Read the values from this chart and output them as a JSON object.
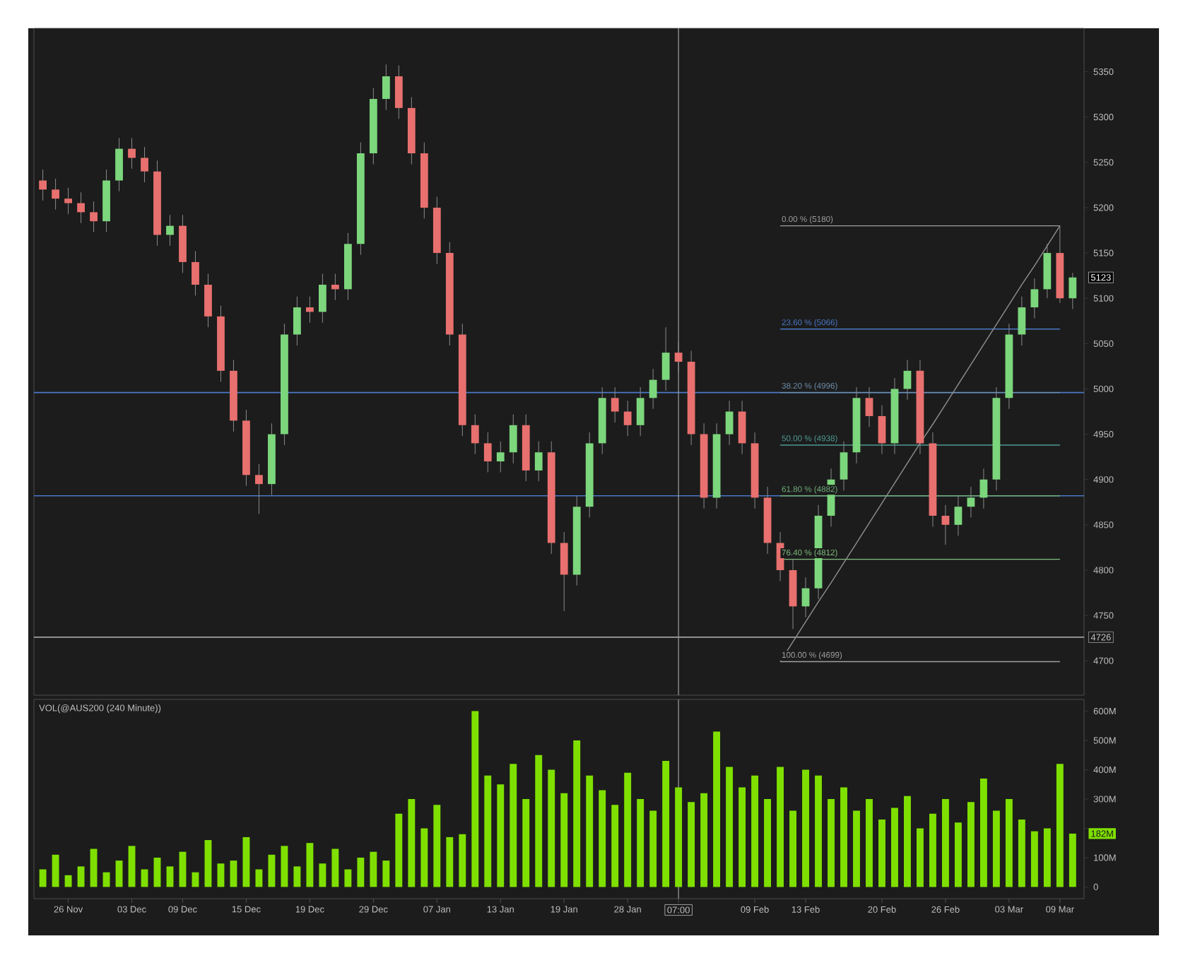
{
  "chart_data": [
    {
      "type": "candlestick",
      "tick_labels": "y",
      "categories": [
        null,
        null,
        "26 Nov",
        null,
        null,
        null,
        null,
        "03 Dec",
        null,
        null,
        null,
        "09 Dec",
        null,
        null,
        null,
        null,
        "15 Dec",
        null,
        null,
        null,
        null,
        "19 Dec",
        null,
        null,
        null,
        null,
        "29 Dec",
        null,
        null,
        null,
        null,
        "07 Jan",
        null,
        null,
        null,
        null,
        "13 Jan",
        null,
        null,
        null,
        null,
        "19 Jan",
        null,
        null,
        null,
        null,
        "28 Jan",
        null,
        null,
        null,
        "07:00",
        null,
        null,
        null,
        null,
        null,
        "09 Feb",
        null,
        null,
        null,
        "13 Feb",
        null,
        null,
        null,
        null,
        null,
        "20 Feb",
        null,
        null,
        null,
        null,
        "26 Feb",
        null,
        null,
        null,
        null,
        "03 Mar",
        null,
        null,
        null,
        "09 Mar",
        null
      ],
      "ohlc": [
        [
          5230,
          5242,
          5208,
          5220
        ],
        [
          5220,
          5232,
          5198,
          5210
        ],
        [
          5210,
          5222,
          5193,
          5205
        ],
        [
          5205,
          5217,
          5183,
          5195
        ],
        [
          5195,
          5207,
          5173,
          5185
        ],
        [
          5185,
          5242,
          5173,
          5230
        ],
        [
          5230,
          5277,
          5218,
          5265
        ],
        [
          5265,
          5277,
          5243,
          5255
        ],
        [
          5255,
          5267,
          5228,
          5240
        ],
        [
          5240,
          5252,
          5158,
          5170
        ],
        [
          5170,
          5192,
          5158,
          5180
        ],
        [
          5180,
          5192,
          5128,
          5140
        ],
        [
          5140,
          5152,
          5103,
          5115
        ],
        [
          5115,
          5127,
          5068,
          5080
        ],
        [
          5080,
          5092,
          5008,
          5020
        ],
        [
          5020,
          5032,
          4953,
          4965
        ],
        [
          4965,
          4977,
          4893,
          4905
        ],
        [
          4905,
          4917,
          4862,
          4895
        ],
        [
          4895,
          4962,
          4883,
          4950
        ],
        [
          4950,
          5072,
          4938,
          5060
        ],
        [
          5060,
          5102,
          5048,
          5090
        ],
        [
          5090,
          5102,
          5073,
          5085
        ],
        [
          5085,
          5127,
          5073,
          5115
        ],
        [
          5115,
          5127,
          5098,
          5110
        ],
        [
          5110,
          5172,
          5098,
          5160
        ],
        [
          5160,
          5272,
          5148,
          5260
        ],
        [
          5260,
          5332,
          5248,
          5320
        ],
        [
          5320,
          5358,
          5308,
          5345
        ],
        [
          5345,
          5357,
          5298,
          5310
        ],
        [
          5310,
          5322,
          5248,
          5260
        ],
        [
          5260,
          5272,
          5188,
          5200
        ],
        [
          5200,
          5212,
          5138,
          5150
        ],
        [
          5150,
          5162,
          5048,
          5060
        ],
        [
          5060,
          5072,
          4948,
          4960
        ],
        [
          4960,
          4972,
          4928,
          4940
        ],
        [
          4940,
          4952,
          4908,
          4920
        ],
        [
          4920,
          4942,
          4908,
          4930
        ],
        [
          4930,
          4972,
          4918,
          4960
        ],
        [
          4960,
          4972,
          4898,
          4910
        ],
        [
          4910,
          4942,
          4898,
          4930
        ],
        [
          4930,
          4942,
          4818,
          4830
        ],
        [
          4830,
          4842,
          4755,
          4795
        ],
        [
          4795,
          4882,
          4783,
          4870
        ],
        [
          4870,
          4952,
          4858,
          4940
        ],
        [
          4940,
          5002,
          4928,
          4990
        ],
        [
          4990,
          5002,
          4963,
          4975
        ],
        [
          4975,
          4987,
          4948,
          4960
        ],
        [
          4960,
          5002,
          4948,
          4990
        ],
        [
          4990,
          5022,
          4978,
          5010
        ],
        [
          5010,
          5068,
          4998,
          5040
        ],
        [
          5040,
          5052,
          5018,
          5030
        ],
        [
          5030,
          5042,
          4938,
          4950
        ],
        [
          4950,
          4962,
          4868,
          4880
        ],
        [
          4880,
          4962,
          4868,
          4950
        ],
        [
          4950,
          4987,
          4938,
          4975
        ],
        [
          4975,
          4987,
          4928,
          4940
        ],
        [
          4940,
          4952,
          4868,
          4880
        ],
        [
          4880,
          4892,
          4818,
          4830
        ],
        [
          4830,
          4842,
          4788,
          4800
        ],
        [
          4800,
          4812,
          4735,
          4760
        ],
        [
          4760,
          4792,
          4748,
          4780
        ],
        [
          4780,
          4872,
          4768,
          4860
        ],
        [
          4860,
          4912,
          4848,
          4900
        ],
        [
          4900,
          4942,
          4888,
          4930
        ],
        [
          4930,
          5002,
          4918,
          4990
        ],
        [
          4990,
          5002,
          4958,
          4970
        ],
        [
          4970,
          4982,
          4928,
          4940
        ],
        [
          4940,
          5012,
          4928,
          5000
        ],
        [
          5000,
          5032,
          4988,
          5020
        ],
        [
          5020,
          5032,
          4928,
          4940
        ],
        [
          4940,
          4952,
          4848,
          4860
        ],
        [
          4860,
          4872,
          4828,
          4850
        ],
        [
          4850,
          4882,
          4838,
          4870
        ],
        [
          4870,
          4892,
          4858,
          4880
        ],
        [
          4880,
          4912,
          4868,
          4900
        ],
        [
          4900,
          5002,
          4888,
          4990
        ],
        [
          4990,
          5072,
          4978,
          5060
        ],
        [
          5060,
          5102,
          5048,
          5090
        ],
        [
          5090,
          5122,
          5078,
          5110
        ],
        [
          5110,
          5160,
          5100,
          5150
        ],
        [
          5150,
          5180,
          5095,
          5100
        ],
        [
          5100,
          5128,
          5088,
          5123
        ]
      ],
      "ylim": [
        4662,
        5398
      ],
      "yticks": [
        4700,
        4750,
        4800,
        4850,
        4900,
        4950,
        5000,
        5050,
        5100,
        5150,
        5200,
        5250,
        5300,
        5350
      ],
      "series": [
        {
          "type": "line",
          "name": "0.00 % (5180)",
          "color": "#a0a0a0",
          "values": [
            null,
            null,
            null,
            null,
            null,
            null,
            null,
            null,
            null,
            null,
            null,
            null,
            null,
            null,
            null,
            null,
            null,
            null,
            null,
            null,
            null,
            null,
            null,
            null,
            null,
            null,
            null,
            null,
            null,
            null,
            null,
            null,
            null,
            null,
            null,
            null,
            null,
            null,
            null,
            null,
            null,
            null,
            null,
            null,
            null,
            null,
            null,
            null,
            null,
            null,
            null,
            null,
            null,
            null,
            null,
            null,
            null,
            null,
            5180,
            5180,
            5180,
            5180,
            5180,
            5180,
            5180,
            5180,
            5180,
            5180,
            5180,
            5180,
            5180,
            5180,
            5180,
            5180,
            5180,
            5180,
            5180,
            5180,
            5180,
            5180,
            5180,
            null
          ]
        },
        {
          "type": "line",
          "name": "23.60 % (5066)",
          "color": "#4a78c8",
          "values": [
            null,
            null,
            null,
            null,
            null,
            null,
            null,
            null,
            null,
            null,
            null,
            null,
            null,
            null,
            null,
            null,
            null,
            null,
            null,
            null,
            null,
            null,
            null,
            null,
            null,
            null,
            null,
            null,
            null,
            null,
            null,
            null,
            null,
            null,
            null,
            null,
            null,
            null,
            null,
            null,
            null,
            null,
            null,
            null,
            null,
            null,
            null,
            null,
            null,
            null,
            null,
            null,
            null,
            null,
            null,
            null,
            null,
            null,
            5066,
            5066,
            5066,
            5066,
            5066,
            5066,
            5066,
            5066,
            5066,
            5066,
            5066,
            5066,
            5066,
            5066,
            5066,
            5066,
            5066,
            5066,
            5066,
            5066,
            5066,
            5066,
            5066,
            null
          ]
        },
        {
          "type": "line",
          "name": "38.20 % (4996)",
          "color": "#6f8faa",
          "values": [
            null,
            null,
            null,
            null,
            null,
            null,
            null,
            null,
            null,
            null,
            null,
            null,
            null,
            null,
            null,
            null,
            null,
            null,
            null,
            null,
            null,
            null,
            null,
            null,
            null,
            null,
            null,
            null,
            null,
            null,
            null,
            null,
            null,
            null,
            null,
            null,
            null,
            null,
            null,
            null,
            null,
            null,
            null,
            null,
            null,
            null,
            null,
            null,
            null,
            null,
            null,
            null,
            null,
            null,
            null,
            null,
            null,
            null,
            4996,
            4996,
            4996,
            4996,
            4996,
            4996,
            4996,
            4996,
            4996,
            4996,
            4996,
            4996,
            4996,
            4996,
            4996,
            4996,
            4996,
            4996,
            4996,
            4996,
            4996,
            4996,
            4996,
            null
          ]
        },
        {
          "type": "line",
          "name": "50.00 % (4938)",
          "color": "#4e9a90",
          "values": [
            null,
            null,
            null,
            null,
            null,
            null,
            null,
            null,
            null,
            null,
            null,
            null,
            null,
            null,
            null,
            null,
            null,
            null,
            null,
            null,
            null,
            null,
            null,
            null,
            null,
            null,
            null,
            null,
            null,
            null,
            null,
            null,
            null,
            null,
            null,
            null,
            null,
            null,
            null,
            null,
            null,
            null,
            null,
            null,
            null,
            null,
            null,
            null,
            null,
            null,
            null,
            null,
            null,
            null,
            null,
            null,
            null,
            null,
            4938,
            4938,
            4938,
            4938,
            4938,
            4938,
            4938,
            4938,
            4938,
            4938,
            4938,
            4938,
            4938,
            4938,
            4938,
            4938,
            4938,
            4938,
            4938,
            4938,
            4938,
            4938,
            4938,
            null
          ]
        },
        {
          "type": "line",
          "name": "61.80 % (4882)",
          "color": "#6faf7a",
          "values": [
            null,
            null,
            null,
            null,
            null,
            null,
            null,
            null,
            null,
            null,
            null,
            null,
            null,
            null,
            null,
            null,
            null,
            null,
            null,
            null,
            null,
            null,
            null,
            null,
            null,
            null,
            null,
            null,
            null,
            null,
            null,
            null,
            null,
            null,
            null,
            null,
            null,
            null,
            null,
            null,
            null,
            null,
            null,
            null,
            null,
            null,
            null,
            null,
            null,
            null,
            null,
            null,
            null,
            null,
            null,
            null,
            null,
            null,
            4882,
            4882,
            4882,
            4882,
            4882,
            4882,
            4882,
            4882,
            4882,
            4882,
            4882,
            4882,
            4882,
            4882,
            4882,
            4882,
            4882,
            4882,
            4882,
            4882,
            4882,
            4882,
            4882,
            null
          ]
        },
        {
          "type": "line",
          "name": "76.40 % (4812)",
          "color": "#7fbf7f",
          "values": [
            null,
            null,
            null,
            null,
            null,
            null,
            null,
            null,
            null,
            null,
            null,
            null,
            null,
            null,
            null,
            null,
            null,
            null,
            null,
            null,
            null,
            null,
            null,
            null,
            null,
            null,
            null,
            null,
            null,
            null,
            null,
            null,
            null,
            null,
            null,
            null,
            null,
            null,
            null,
            null,
            null,
            null,
            null,
            null,
            null,
            null,
            null,
            null,
            null,
            null,
            null,
            null,
            null,
            null,
            null,
            null,
            null,
            null,
            4812,
            4812,
            4812,
            4812,
            4812,
            4812,
            4812,
            4812,
            4812,
            4812,
            4812,
            4812,
            4812,
            4812,
            4812,
            4812,
            4812,
            4812,
            4812,
            4812,
            4812,
            4812,
            4812,
            null
          ]
        },
        {
          "type": "line",
          "name": "100.00 % (4699)",
          "color": "#a0a0a0",
          "values": [
            null,
            null,
            null,
            null,
            null,
            null,
            null,
            null,
            null,
            null,
            null,
            null,
            null,
            null,
            null,
            null,
            null,
            null,
            null,
            null,
            null,
            null,
            null,
            null,
            null,
            null,
            null,
            null,
            null,
            null,
            null,
            null,
            null,
            null,
            null,
            null,
            null,
            null,
            null,
            null,
            null,
            null,
            null,
            null,
            null,
            null,
            null,
            null,
            null,
            null,
            null,
            null,
            null,
            null,
            null,
            null,
            null,
            null,
            4699,
            4699,
            4699,
            4699,
            4699,
            4699,
            4699,
            4699,
            4699,
            4699,
            4699,
            4699,
            4699,
            4699,
            4699,
            4699,
            4699,
            4699,
            4699,
            4699,
            4699,
            4699,
            4699,
            null
          ]
        },
        {
          "type": "line",
          "color": "#909090",
          "values": [
            null,
            null,
            null,
            null,
            null,
            null,
            null,
            null,
            null,
            null,
            null,
            null,
            null,
            null,
            null,
            null,
            null,
            null,
            null,
            null,
            null,
            null,
            null,
            null,
            null,
            null,
            null,
            null,
            null,
            null,
            null,
            null,
            null,
            null,
            null,
            null,
            null,
            null,
            null,
            null,
            null,
            null,
            null,
            null,
            null,
            null,
            null,
            null,
            null,
            null,
            null,
            null,
            null,
            null,
            null,
            null,
            null,
            null,
            4699,
            4721,
            4743,
            4765,
            4786,
            4808,
            4830,
            4852,
            4874,
            4896,
            4918,
            4940,
            4961,
            4983,
            5005,
            5027,
            5049,
            5071,
            5093,
            5115,
            5136,
            5158,
            5180,
            null
          ]
        }
      ],
      "ref_lines": [
        {
          "axis": "y",
          "value": 4996,
          "color": "#4a78c8"
        },
        {
          "axis": "y",
          "value": 4882,
          "color": "#4a78c8"
        },
        {
          "axis": "y",
          "value": 4726,
          "label": "4726",
          "color": "#a0a0a0"
        },
        {
          "axis": "x",
          "value": "07:00",
          "color": "#a0a0a0"
        }
      ],
      "annotations": [
        "5123"
      ]
    },
    {
      "type": "bar",
      "title": "VOL(@AUS200 (240 Minute))",
      "color": "#7fe000",
      "categories": [
        null,
        null,
        "26 Nov",
        null,
        null,
        null,
        null,
        "03 Dec",
        null,
        null,
        null,
        "09 Dec",
        null,
        null,
        null,
        null,
        "15 Dec",
        null,
        null,
        null,
        null,
        "19 Dec",
        null,
        null,
        null,
        null,
        "29 Dec",
        null,
        null,
        null,
        null,
        "07 Jan",
        null,
        null,
        null,
        null,
        "13 Jan",
        null,
        null,
        null,
        null,
        "19 Jan",
        null,
        null,
        null,
        null,
        "28 Jan",
        null,
        null,
        null,
        "07:00",
        null,
        null,
        null,
        null,
        null,
        "09 Feb",
        null,
        null,
        null,
        "13 Feb",
        null,
        null,
        null,
        null,
        null,
        "20 Feb",
        null,
        null,
        null,
        null,
        "26 Feb",
        null,
        null,
        null,
        null,
        "03 Mar",
        null,
        null,
        null,
        "09 Mar",
        null
      ],
      "values": [
        60,
        110,
        40,
        70,
        130,
        50,
        90,
        140,
        60,
        100,
        70,
        120,
        50,
        160,
        80,
        90,
        170,
        60,
        110,
        140,
        70,
        150,
        80,
        130,
        60,
        100,
        120,
        90,
        250,
        300,
        200,
        280,
        170,
        180,
        600,
        380,
        350,
        420,
        300,
        450,
        400,
        320,
        500,
        380,
        330,
        280,
        390,
        300,
        260,
        430,
        340,
        290,
        320,
        530,
        410,
        340,
        380,
        300,
        410,
        260,
        400,
        380,
        300,
        340,
        260,
        300,
        230,
        270,
        310,
        200,
        250,
        300,
        220,
        290,
        370,
        260,
        300,
        230,
        190,
        200,
        420,
        182
      ],
      "ylim": [
        -40,
        640
      ],
      "yticks": [
        0,
        {
          "value": 100,
          "label": "100M"
        },
        {
          "value": 200,
          "label": null
        },
        {
          "value": 300,
          "label": "300M"
        },
        {
          "value": 400,
          "label": "400M"
        },
        {
          "value": 500,
          "label": "500M"
        },
        {
          "value": 600,
          "label": "600M"
        }
      ],
      "ref_lines": [
        {
          "axis": "x",
          "value": "07:00",
          "color": "#a0a0a0"
        }
      ],
      "annotations": [
        "182M"
      ]
    }
  ]
}
